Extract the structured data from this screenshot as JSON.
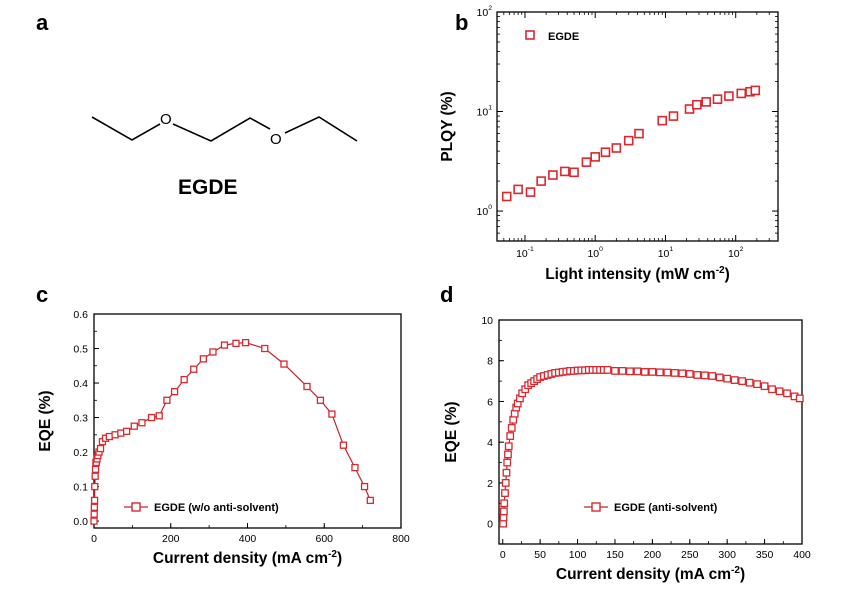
{
  "panels": {
    "a": {
      "letter": "a",
      "molecule_label": "EGDE",
      "atom_o": "O"
    },
    "b": {
      "letter": "b"
    },
    "c": {
      "letter": "c"
    },
    "d": {
      "letter": "d"
    }
  },
  "colors": {
    "marker": "#d9282f",
    "line": "#c0262c"
  },
  "chart_data": [
    {
      "id": "b",
      "type": "scatter",
      "xlabel": "Light intensity (mW cm-2)",
      "ylabel": "PLQY (%)",
      "xscale": "log",
      "yscale": "log",
      "xlim": [
        0.04,
        400
      ],
      "ylim": [
        0.5,
        100
      ],
      "xticks": [
        "10-1",
        "100",
        "101",
        "102"
      ],
      "yticks": [
        "100",
        "101",
        "102"
      ],
      "legend_placement": "top-left",
      "series": [
        {
          "name": "EGDE",
          "x": [
            0.055,
            0.08,
            0.12,
            0.17,
            0.25,
            0.37,
            0.5,
            0.75,
            1.0,
            1.4,
            2.0,
            3.0,
            4.2,
            9,
            13,
            22,
            28,
            38,
            55,
            80,
            120,
            160,
            190
          ],
          "y": [
            1.4,
            1.65,
            1.55,
            2.0,
            2.3,
            2.5,
            2.45,
            3.1,
            3.5,
            3.9,
            4.3,
            5.1,
            6.0,
            8.1,
            9.0,
            10.6,
            11.7,
            12.5,
            13.3,
            14.3,
            15.2,
            15.8,
            16.3
          ]
        }
      ]
    },
    {
      "id": "c",
      "type": "line",
      "xlabel": "Current density (mA cm-2)",
      "ylabel": "EQE (%)",
      "xlim": [
        0,
        800
      ],
      "ylim": [
        -0.02,
        0.6
      ],
      "xticks": [
        "0",
        "200",
        "400",
        "600",
        "800"
      ],
      "yticks": [
        "0.0",
        "0.1",
        "0.2",
        "0.3",
        "0.4",
        "0.5",
        "0.6"
      ],
      "legend_placement": "bottom-left",
      "series": [
        {
          "name": "EGDE (w/o anti-solvent)",
          "x": [
            0,
            0.5,
            1,
            1.5,
            2,
            3,
            4,
            5,
            6,
            8,
            10,
            13,
            17,
            22,
            30,
            40,
            55,
            70,
            85,
            105,
            125,
            150,
            170,
            190,
            210,
            235,
            260,
            285,
            310,
            340,
            370,
            395,
            445,
            495,
            555,
            590,
            620,
            650,
            680,
            705,
            720
          ],
          "y": [
            0.0,
            0.02,
            0.04,
            0.06,
            0.1,
            0.13,
            0.15,
            0.17,
            0.17,
            0.18,
            0.19,
            0.2,
            0.21,
            0.23,
            0.24,
            0.245,
            0.25,
            0.255,
            0.26,
            0.275,
            0.285,
            0.3,
            0.305,
            0.35,
            0.375,
            0.41,
            0.44,
            0.47,
            0.49,
            0.51,
            0.515,
            0.517,
            0.5,
            0.455,
            0.39,
            0.35,
            0.31,
            0.22,
            0.155,
            0.1,
            0.06
          ]
        }
      ]
    },
    {
      "id": "d",
      "type": "line",
      "xlabel": "Current density (mA cm-2)",
      "ylabel": "EQE (%)",
      "xlim": [
        -5,
        400
      ],
      "ylim": [
        -1,
        10
      ],
      "xticks": [
        "0",
        "50",
        "100",
        "150",
        "200",
        "250",
        "300",
        "350",
        "400"
      ],
      "yticks": [
        "0",
        "2",
        "4",
        "6",
        "8",
        "10"
      ],
      "legend_placement": "bottom-right",
      "series": [
        {
          "name": "EGDE (anti-solvent)",
          "x": [
            0.5,
            1,
            1.5,
            2,
            3,
            4,
            5,
            6,
            7,
            8,
            10,
            12,
            14,
            16,
            18,
            20,
            23,
            26,
            30,
            34,
            38,
            42,
            46,
            50,
            55,
            60,
            65,
            70,
            75,
            80,
            85,
            90,
            95,
            100,
            105,
            110,
            115,
            120,
            125,
            130,
            135,
            140,
            150,
            160,
            170,
            180,
            190,
            200,
            210,
            220,
            230,
            240,
            250,
            260,
            270,
            280,
            290,
            300,
            310,
            320,
            330,
            340,
            350,
            360,
            370,
            380,
            390,
            397
          ],
          "y": [
            0.0,
            0.3,
            0.6,
            1.0,
            1.5,
            2.0,
            2.5,
            3.0,
            3.4,
            3.8,
            4.3,
            4.7,
            5.1,
            5.4,
            5.7,
            5.9,
            6.15,
            6.4,
            6.6,
            6.8,
            6.9,
            7.0,
            7.1,
            7.2,
            7.25,
            7.3,
            7.35,
            7.4,
            7.42,
            7.45,
            7.47,
            7.5,
            7.5,
            7.52,
            7.53,
            7.53,
            7.55,
            7.55,
            7.55,
            7.55,
            7.55,
            7.55,
            7.5,
            7.5,
            7.48,
            7.48,
            7.45,
            7.45,
            7.43,
            7.42,
            7.4,
            7.38,
            7.35,
            7.3,
            7.28,
            7.25,
            7.18,
            7.12,
            7.05,
            7.0,
            6.92,
            6.85,
            6.75,
            6.6,
            6.5,
            6.4,
            6.25,
            6.15
          ]
        }
      ]
    }
  ]
}
